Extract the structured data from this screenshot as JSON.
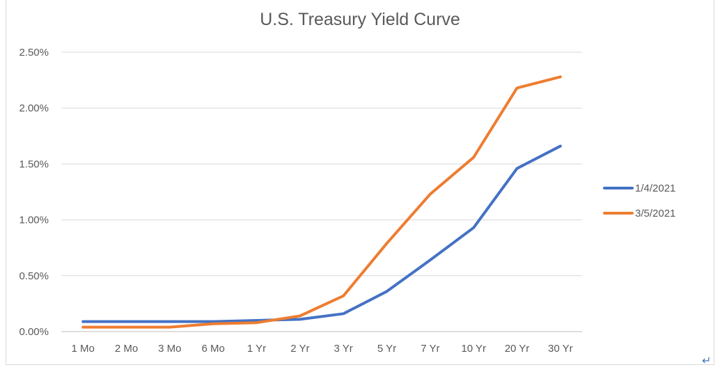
{
  "chart_data": {
    "type": "line",
    "title": "U.S. Treasury Yield Curve",
    "xlabel": "",
    "ylabel": "",
    "categories": [
      "1 Mo",
      "2 Mo",
      "3 Mo",
      "6 Mo",
      "1 Yr",
      "2 Yr",
      "3 Yr",
      "5 Yr",
      "7 Yr",
      "10 Yr",
      "20 Yr",
      "30 Yr"
    ],
    "ylim": [
      0,
      0.025
    ],
    "yticks": [
      0,
      0.005,
      0.01,
      0.015,
      0.02,
      0.025
    ],
    "ytick_labels": [
      "0.00%",
      "0.50%",
      "1.00%",
      "1.50%",
      "2.00%",
      "2.50%"
    ],
    "grid": true,
    "legend_position": "right",
    "series": [
      {
        "name": "1/4/2021",
        "color": "#4472c4",
        "values": [
          0.0009,
          0.0009,
          0.0009,
          0.0009,
          0.001,
          0.0011,
          0.0016,
          0.0036,
          0.0064,
          0.0093,
          0.0146,
          0.0166
        ]
      },
      {
        "name": "3/5/2021",
        "color": "#ed7d31",
        "values": [
          0.0004,
          0.0004,
          0.0004,
          0.0007,
          0.0008,
          0.0014,
          0.0032,
          0.0079,
          0.0123,
          0.0156,
          0.0218,
          0.0228
        ]
      }
    ]
  },
  "decor": {
    "return_mark": "↵"
  }
}
